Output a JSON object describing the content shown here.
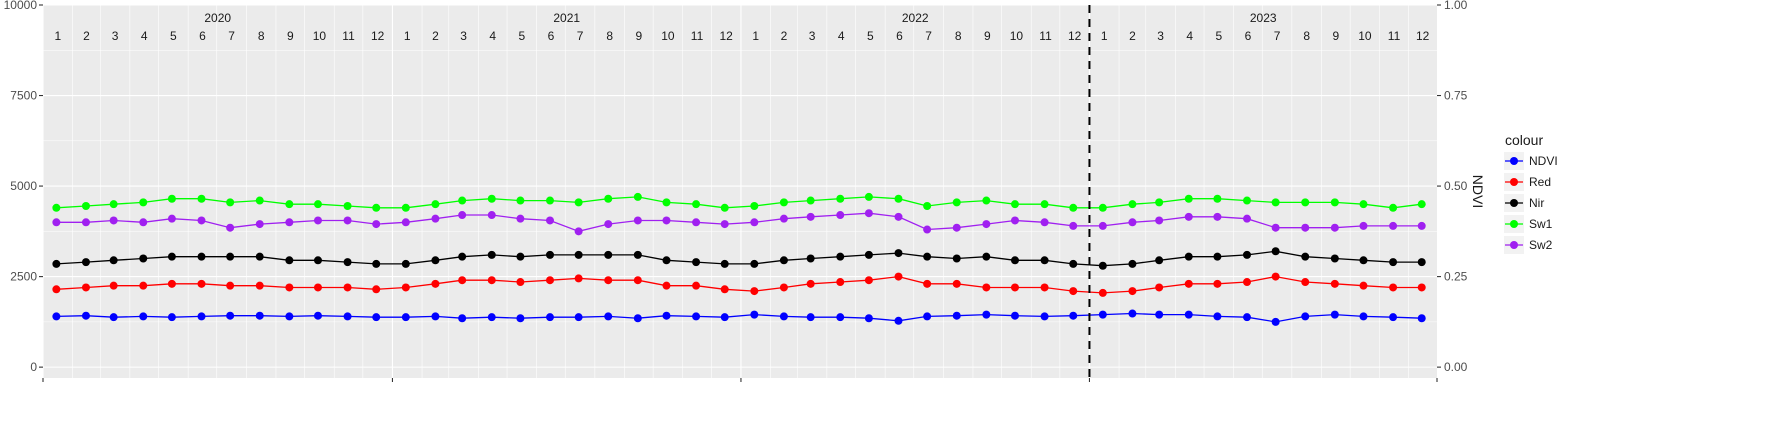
{
  "chart_data": {
    "type": "line",
    "title": "",
    "xlabel": "",
    "ylabel": "",
    "y2label": "NDVI",
    "ylim": [
      -300,
      10000
    ],
    "y2lim": [
      -0.03,
      1.0
    ],
    "yticks": [
      0,
      2500,
      5000,
      7500,
      10000
    ],
    "yticklabels": [
      "0",
      "2500",
      "5000",
      "7500",
      "10000"
    ],
    "y2ticks": [
      0,
      0.25,
      0.5,
      0.75,
      1.0
    ],
    "y2ticklabels": [
      "0.00",
      "0.25",
      "0.50",
      "0.75",
      "1.00"
    ],
    "xlim": [
      "2020-01-01",
      "2023-12-31"
    ],
    "grid": true,
    "years": [
      "2020",
      "2021",
      "2022",
      "2023"
    ],
    "month_labels": [
      "1",
      "2",
      "3",
      "4",
      "5",
      "6",
      "7",
      "8",
      "9",
      "10",
      "11",
      "12"
    ],
    "vline": {
      "x": "2023-01-01",
      "style": "dashed"
    },
    "legend": {
      "title": "colour",
      "position": "right"
    },
    "series": [
      {
        "name": "NDVI",
        "color": "#0000FF",
        "x": [
          "2020-01-15",
          "2020-02-15",
          "2020-03-15",
          "2020-04-15",
          "2020-05-15",
          "2020-06-15",
          "2020-07-15",
          "2020-08-15",
          "2020-09-15",
          "2020-10-15",
          "2020-11-15",
          "2020-12-15",
          "2021-01-15",
          "2021-02-15",
          "2021-03-15",
          "2021-04-15",
          "2021-05-15",
          "2021-06-15",
          "2021-07-15",
          "2021-08-15",
          "2021-09-15",
          "2021-10-15",
          "2021-11-15",
          "2021-12-15",
          "2022-01-15",
          "2022-02-15",
          "2022-03-15",
          "2022-04-15",
          "2022-05-15",
          "2022-06-15",
          "2022-07-15",
          "2022-08-15",
          "2022-09-15",
          "2022-10-15",
          "2022-11-15",
          "2022-12-15",
          "2023-01-15",
          "2023-02-15",
          "2023-03-15",
          "2023-04-15",
          "2023-05-15",
          "2023-06-15",
          "2023-07-15",
          "2023-08-15",
          "2023-09-15",
          "2023-10-15",
          "2023-11-15",
          "2023-12-15"
        ],
        "values": [
          1400,
          1420,
          1380,
          1400,
          1380,
          1400,
          1420,
          1420,
          1400,
          1420,
          1400,
          1380,
          1380,
          1400,
          1350,
          1380,
          1350,
          1380,
          1380,
          1400,
          1350,
          1420,
          1400,
          1380,
          1450,
          1400,
          1380,
          1380,
          1350,
          1280,
          1400,
          1420,
          1450,
          1420,
          1400,
          1420,
          1450,
          1480,
          1450,
          1450,
          1400,
          1380,
          1250,
          1400,
          1450,
          1400,
          1380,
          1350
        ]
      },
      {
        "name": "Red",
        "color": "#FF0000",
        "x": [
          "2020-01-15",
          "2020-02-15",
          "2020-03-15",
          "2020-04-15",
          "2020-05-15",
          "2020-06-15",
          "2020-07-15",
          "2020-08-15",
          "2020-09-15",
          "2020-10-15",
          "2020-11-15",
          "2020-12-15",
          "2021-01-15",
          "2021-02-15",
          "2021-03-15",
          "2021-04-15",
          "2021-05-15",
          "2021-06-15",
          "2021-07-15",
          "2021-08-15",
          "2021-09-15",
          "2021-10-15",
          "2021-11-15",
          "2021-12-15",
          "2022-01-15",
          "2022-02-15",
          "2022-03-15",
          "2022-04-15",
          "2022-05-15",
          "2022-06-15",
          "2022-07-15",
          "2022-08-15",
          "2022-09-15",
          "2022-10-15",
          "2022-11-15",
          "2022-12-15",
          "2023-01-15",
          "2023-02-15",
          "2023-03-15",
          "2023-04-15",
          "2023-05-15",
          "2023-06-15",
          "2023-07-15",
          "2023-08-15",
          "2023-09-15",
          "2023-10-15",
          "2023-11-15",
          "2023-12-15"
        ],
        "values": [
          2150,
          2200,
          2250,
          2250,
          2300,
          2300,
          2250,
          2250,
          2200,
          2200,
          2200,
          2150,
          2200,
          2300,
          2400,
          2400,
          2350,
          2400,
          2450,
          2400,
          2400,
          2250,
          2250,
          2150,
          2100,
          2200,
          2300,
          2350,
          2400,
          2500,
          2300,
          2300,
          2200,
          2200,
          2200,
          2100,
          2050,
          2100,
          2200,
          2300,
          2300,
          2350,
          2500,
          2350,
          2300,
          2250,
          2200,
          2200
        ]
      },
      {
        "name": "Nir",
        "color": "#000000",
        "x": [
          "2020-01-15",
          "2020-02-15",
          "2020-03-15",
          "2020-04-15",
          "2020-05-15",
          "2020-06-15",
          "2020-07-15",
          "2020-08-15",
          "2020-09-15",
          "2020-10-15",
          "2020-11-15",
          "2020-12-15",
          "2021-01-15",
          "2021-02-15",
          "2021-03-15",
          "2021-04-15",
          "2021-05-15",
          "2021-06-15",
          "2021-07-15",
          "2021-08-15",
          "2021-09-15",
          "2021-10-15",
          "2021-11-15",
          "2021-12-15",
          "2022-01-15",
          "2022-02-15",
          "2022-03-15",
          "2022-04-15",
          "2022-05-15",
          "2022-06-15",
          "2022-07-15",
          "2022-08-15",
          "2022-09-15",
          "2022-10-15",
          "2022-11-15",
          "2022-12-15",
          "2023-01-15",
          "2023-02-15",
          "2023-03-15",
          "2023-04-15",
          "2023-05-15",
          "2023-06-15",
          "2023-07-15",
          "2023-08-15",
          "2023-09-15",
          "2023-10-15",
          "2023-11-15",
          "2023-12-15"
        ],
        "values": [
          2850,
          2900,
          2950,
          3000,
          3050,
          3050,
          3050,
          3050,
          2950,
          2950,
          2900,
          2850,
          2850,
          2950,
          3050,
          3100,
          3050,
          3100,
          3100,
          3100,
          3100,
          2950,
          2900,
          2850,
          2850,
          2950,
          3000,
          3050,
          3100,
          3150,
          3050,
          3000,
          3050,
          2950,
          2950,
          2850,
          2800,
          2850,
          2950,
          3050,
          3050,
          3100,
          3200,
          3050,
          3000,
          2950,
          2900,
          2900
        ]
      },
      {
        "name": "Sw1",
        "color": "#00FF00",
        "x": [
          "2020-01-15",
          "2020-02-15",
          "2020-03-15",
          "2020-04-15",
          "2020-05-15",
          "2020-06-15",
          "2020-07-15",
          "2020-08-15",
          "2020-09-15",
          "2020-10-15",
          "2020-11-15",
          "2020-12-15",
          "2021-01-15",
          "2021-02-15",
          "2021-03-15",
          "2021-04-15",
          "2021-05-15",
          "2021-06-15",
          "2021-07-15",
          "2021-08-15",
          "2021-09-15",
          "2021-10-15",
          "2021-11-15",
          "2021-12-15",
          "2022-01-15",
          "2022-02-15",
          "2022-03-15",
          "2022-04-15",
          "2022-05-15",
          "2022-06-15",
          "2022-07-15",
          "2022-08-15",
          "2022-09-15",
          "2022-10-15",
          "2022-11-15",
          "2022-12-15",
          "2023-01-15",
          "2023-02-15",
          "2023-03-15",
          "2023-04-15",
          "2023-05-15",
          "2023-06-15",
          "2023-07-15",
          "2023-08-15",
          "2023-09-15",
          "2023-10-15",
          "2023-11-15",
          "2023-12-15"
        ],
        "values": [
          4400,
          4450,
          4500,
          4550,
          4650,
          4650,
          4550,
          4600,
          4500,
          4500,
          4450,
          4400,
          4400,
          4500,
          4600,
          4650,
          4600,
          4600,
          4550,
          4650,
          4700,
          4550,
          4500,
          4400,
          4450,
          4550,
          4600,
          4650,
          4700,
          4650,
          4450,
          4550,
          4600,
          4500,
          4500,
          4400,
          4400,
          4500,
          4550,
          4650,
          4650,
          4600,
          4550,
          4550,
          4550,
          4500,
          4400,
          4500
        ]
      },
      {
        "name": "Sw2",
        "color": "#A020F0",
        "x": [
          "2020-01-15",
          "2020-02-15",
          "2020-03-15",
          "2020-04-15",
          "2020-05-15",
          "2020-06-15",
          "2020-07-15",
          "2020-08-15",
          "2020-09-15",
          "2020-10-15",
          "2020-11-15",
          "2020-12-15",
          "2021-01-15",
          "2021-02-15",
          "2021-03-15",
          "2021-04-15",
          "2021-05-15",
          "2021-06-15",
          "2021-07-15",
          "2021-08-15",
          "2021-09-15",
          "2021-10-15",
          "2021-11-15",
          "2021-12-15",
          "2022-01-15",
          "2022-02-15",
          "2022-03-15",
          "2022-04-15",
          "2022-05-15",
          "2022-06-15",
          "2022-07-15",
          "2022-08-15",
          "2022-09-15",
          "2022-10-15",
          "2022-11-15",
          "2022-12-15",
          "2023-01-15",
          "2023-02-15",
          "2023-03-15",
          "2023-04-15",
          "2023-05-15",
          "2023-06-15",
          "2023-07-15",
          "2023-08-15",
          "2023-09-15",
          "2023-10-15",
          "2023-11-15",
          "2023-12-15"
        ],
        "values": [
          4000,
          4000,
          4050,
          4000,
          4100,
          4050,
          3850,
          3950,
          4000,
          4050,
          4050,
          3950,
          4000,
          4100,
          4200,
          4200,
          4100,
          4050,
          3750,
          3950,
          4050,
          4050,
          4000,
          3950,
          4000,
          4100,
          4150,
          4200,
          4250,
          4150,
          3800,
          3850,
          3950,
          4050,
          4000,
          3900,
          3900,
          4000,
          4050,
          4150,
          4150,
          4100,
          3850,
          3850,
          3850,
          3900,
          3900,
          3900
        ]
      }
    ]
  }
}
